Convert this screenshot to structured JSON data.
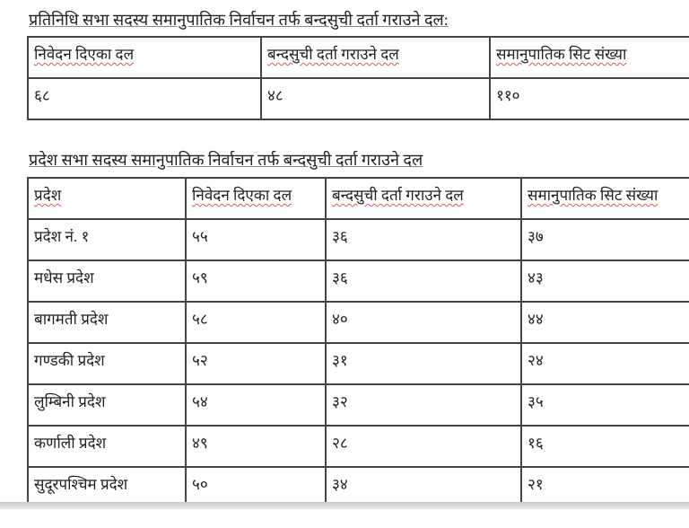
{
  "section1": {
    "title": "प्रतिनिधि सभा सदस्य समानुपातिक निर्वाचन तर्फ बन्दसुची दर्ता गराउने दल:",
    "headers": [
      "निवेदन दिएका दल",
      "बन्दसुची दर्ता गराउने दल",
      "समानुपातिक सिट संख्या"
    ],
    "row": [
      "६८",
      "४८",
      "११०"
    ]
  },
  "section2": {
    "title": "प्रदेश सभा सदस्य समानुपातिक निर्वाचन तर्फ बन्दसुची दर्ता गराउने दल",
    "headers": [
      "प्रदेश",
      "निवेदन दिएका दल",
      "बन्दसुची दर्ता गराउने दल",
      "समानुपातिक सिट संख्या"
    ],
    "rows": [
      [
        "प्रदेश नं. १",
        "५५",
        "३६",
        "३७"
      ],
      [
        "मधेस प्रदेश",
        "५९",
        "३६",
        "४३"
      ],
      [
        "बागमती प्रदेश",
        "५८",
        "४०",
        "४४"
      ],
      [
        "गण्डकी प्रदेश",
        "५२",
        "३१",
        "२४"
      ],
      [
        "लुम्बिनी प्रदेश",
        "५४",
        "३२",
        "३५"
      ],
      [
        "कर्णाली प्रदेश",
        "४९",
        "२८",
        "१६"
      ],
      [
        "सुदूरपश्चिम प्रदेश",
        "५०",
        "३४",
        "२१"
      ]
    ]
  }
}
